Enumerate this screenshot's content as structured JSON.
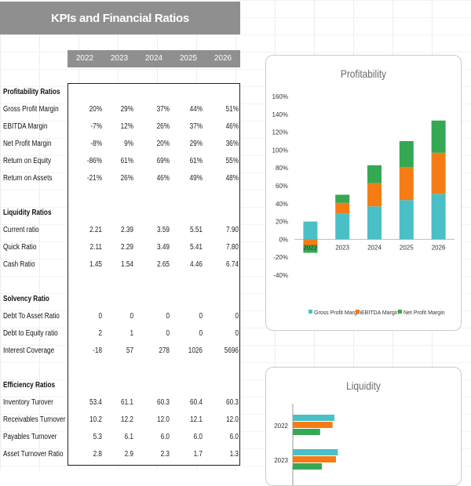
{
  "title": "KPIs and Financial Ratios",
  "years": [
    "2022",
    "2023",
    "2024",
    "2025",
    "2026"
  ],
  "sections": [
    {
      "name": "Profitability Ratios",
      "rows": [
        {
          "label": "Gross Profit Margin",
          "values": [
            "20%",
            "29%",
            "37%",
            "44%",
            "51%"
          ]
        },
        {
          "label": "EBITDA Margin",
          "values": [
            "-7%",
            "12%",
            "26%",
            "37%",
            "46%"
          ]
        },
        {
          "label": "Net Profit Margin",
          "values": [
            "-8%",
            "9%",
            "20%",
            "29%",
            "36%"
          ]
        },
        {
          "label": "Return on Equity",
          "values": [
            "-86%",
            "61%",
            "69%",
            "61%",
            "55%"
          ]
        },
        {
          "label": "Return on Assets",
          "values": [
            "-21%",
            "26%",
            "46%",
            "49%",
            "48%"
          ]
        }
      ]
    },
    {
      "name": "Liquidity Ratios",
      "rows": [
        {
          "label": "Current ratio",
          "values": [
            "2.21",
            "2.39",
            "3.59",
            "5.51",
            "7.90"
          ]
        },
        {
          "label": "Quick Ratio",
          "values": [
            "2.11",
            "2.29",
            "3.49",
            "5.41",
            "7.80"
          ]
        },
        {
          "label": "Cash Ratio",
          "values": [
            "1.45",
            "1.54",
            "2.65",
            "4.46",
            "6.74"
          ]
        }
      ]
    },
    {
      "name": "Solvency Ratio",
      "rows": [
        {
          "label": "Debt To Asset Ratio",
          "values": [
            "0",
            "0",
            "0",
            "0",
            "0"
          ]
        },
        {
          "label": "Debt to Equity ratio",
          "values": [
            "2",
            "1",
            "0",
            "0",
            "0"
          ]
        },
        {
          "label": "Interest Coverage",
          "values": [
            "-18",
            "57",
            "278",
            "1026",
            "5696"
          ]
        }
      ]
    },
    {
      "name": "Efficiency Ratios",
      "rows": [
        {
          "label": "Inventory Turover",
          "values": [
            "53.4",
            "61.1",
            "60.3",
            "60.4",
            "60.3"
          ]
        },
        {
          "label": "Receivables Turnover",
          "values": [
            "10.2",
            "12.2",
            "12.0",
            "12.1",
            "12.0"
          ]
        },
        {
          "label": "Payables Turnover",
          "values": [
            "5.3",
            "6.1",
            "6.0",
            "6.0",
            "6.0"
          ]
        },
        {
          "label": "Asset Turnover Ratio",
          "values": [
            "2.8",
            "2.9",
            "2.3",
            "1.7",
            "1.3"
          ]
        }
      ]
    }
  ],
  "colors": {
    "gross": "#4bbfc6",
    "ebitda": "#f57c14",
    "net": "#35a853",
    "header_gray": "#8f8f8f"
  },
  "chart_data": [
    {
      "type": "bar",
      "stacked": true,
      "title": "Profitability",
      "categories": [
        "2022",
        "2023",
        "2024",
        "2025",
        "2026"
      ],
      "series": [
        {
          "name": "Gross Profit Margin",
          "values": [
            20,
            29,
            37,
            44,
            51
          ]
        },
        {
          "name": "EBITDA Margin",
          "values": [
            -7,
            12,
            26,
            37,
            46
          ]
        },
        {
          "name": "Net Profit Margin",
          "values": [
            -8,
            9,
            20,
            29,
            36
          ]
        }
      ],
      "ylim": [
        -40,
        160
      ],
      "yticks": [
        "-40%",
        "-20%",
        "0%",
        "20%",
        "40%",
        "60%",
        "80%",
        "100%",
        "120%",
        "140%",
        "160%"
      ],
      "legend": "bottom"
    },
    {
      "type": "bar",
      "orientation": "horizontal",
      "title": "Liquidity",
      "categories": [
        "2022",
        "2023"
      ],
      "series": [
        {
          "name": "Current ratio",
          "values": [
            2.21,
            2.39
          ]
        },
        {
          "name": "Quick Ratio",
          "values": [
            2.11,
            2.29
          ]
        },
        {
          "name": "Cash Ratio",
          "values": [
            1.45,
            1.54
          ]
        }
      ]
    }
  ]
}
